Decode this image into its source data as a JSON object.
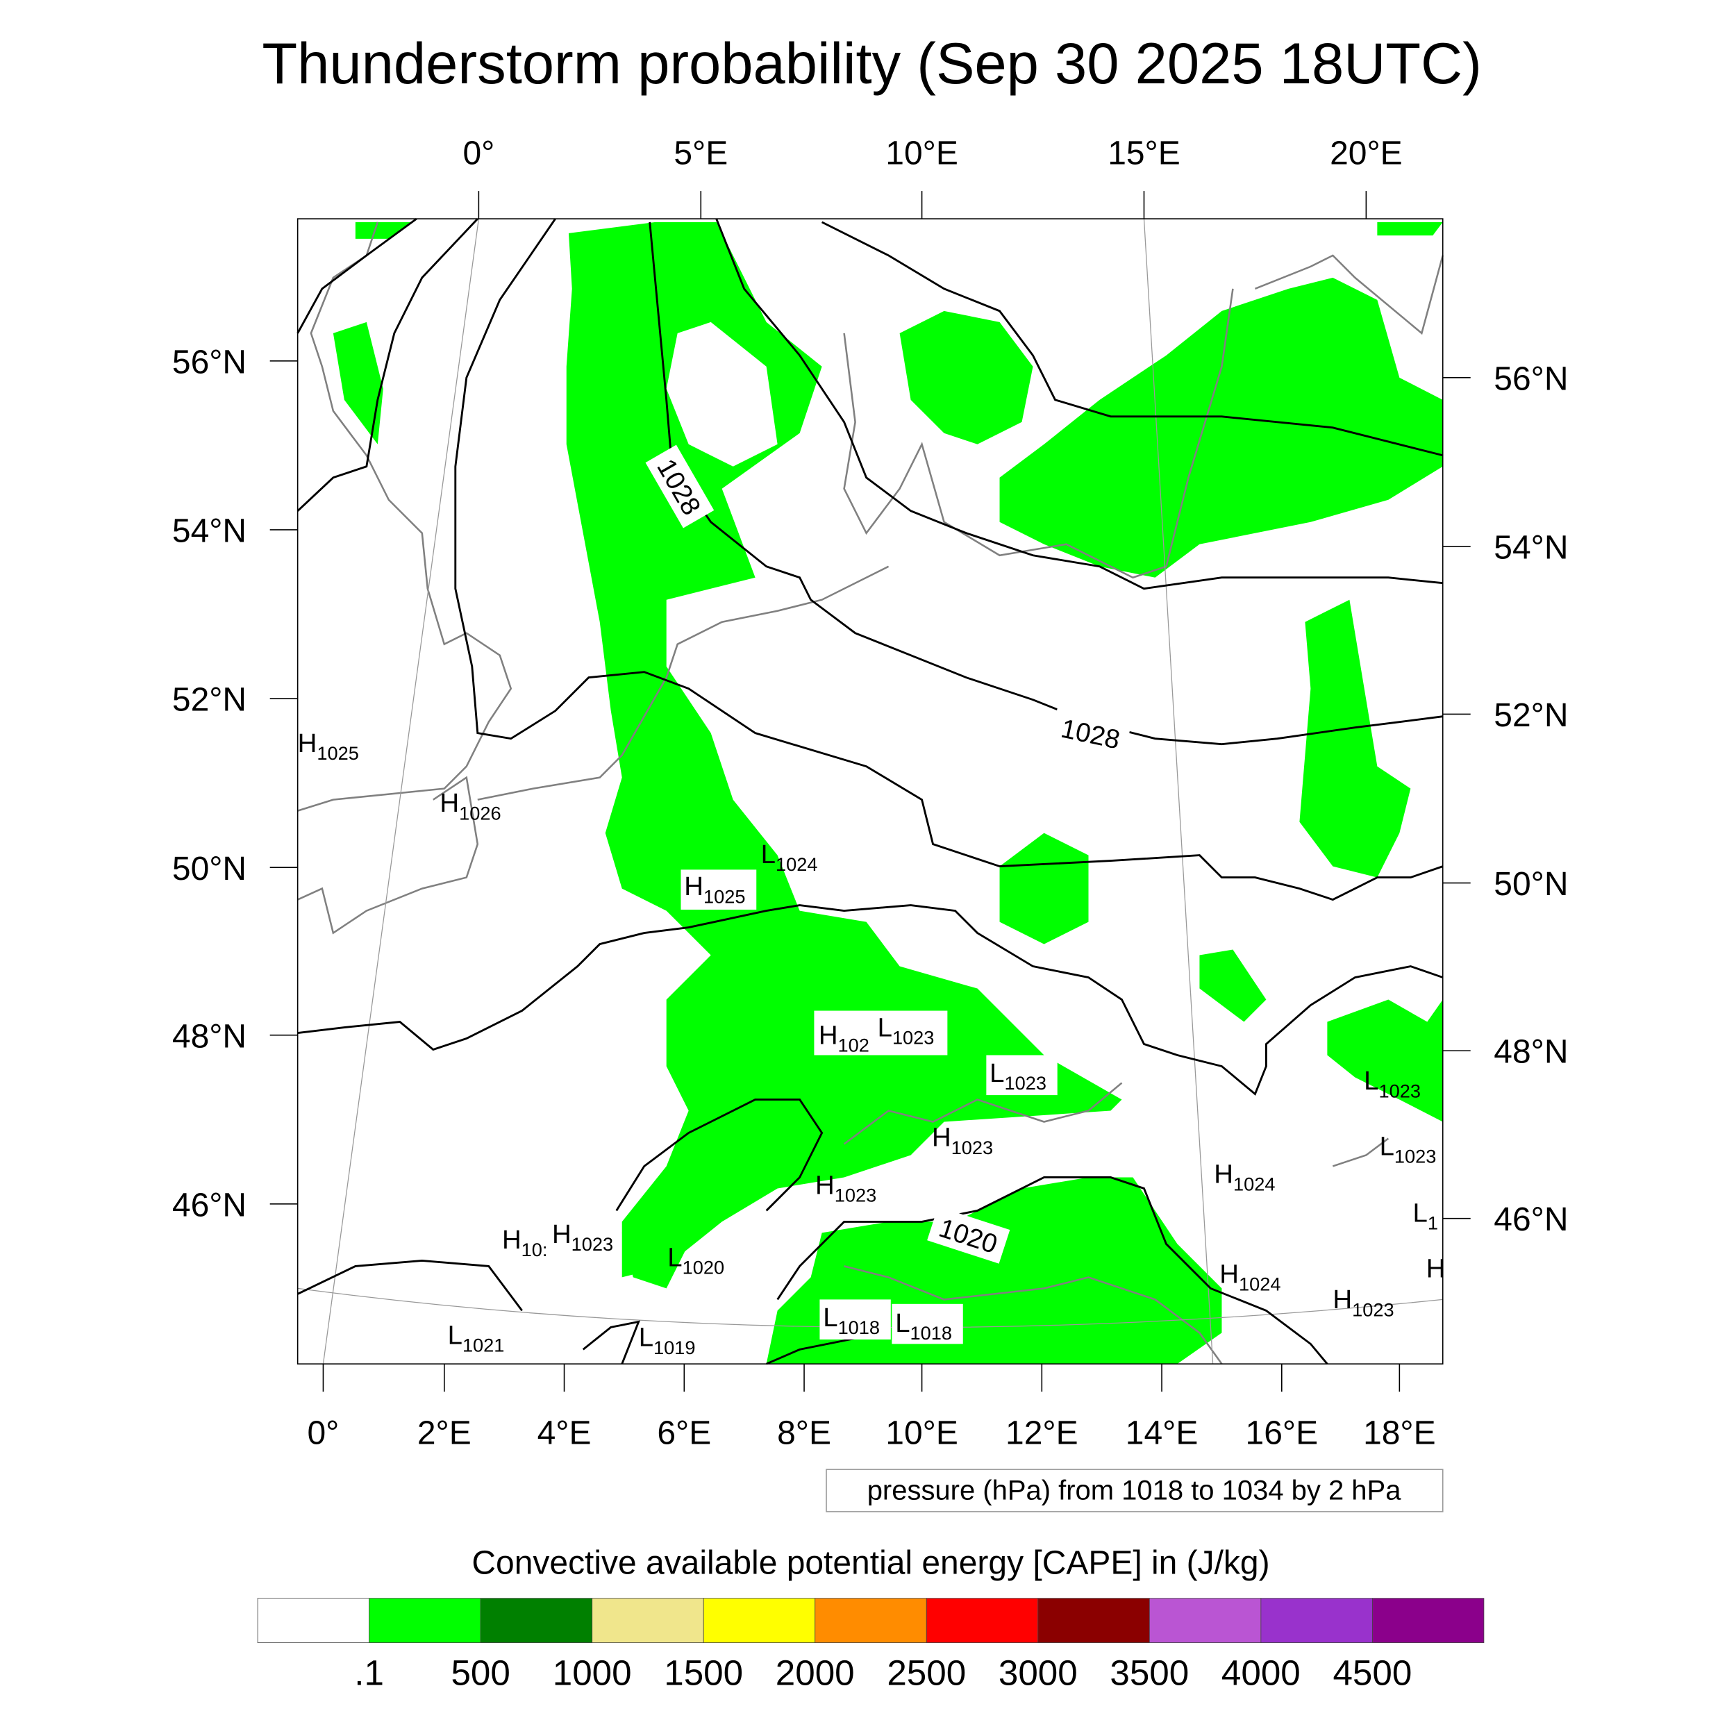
{
  "title": "Thunderstorm probability (Sep 30 2025 18UTC)",
  "map": {
    "top_lon_labels": [
      "0°",
      "5°E",
      "10°E",
      "15°E",
      "20°E"
    ],
    "bottom_lon_labels": [
      "0°",
      "2°E",
      "4°E",
      "6°E",
      "8°E",
      "10°E",
      "12°E",
      "14°E",
      "16°E",
      "18°E"
    ],
    "left_lat_labels": [
      "56°N",
      "54°N",
      "52°N",
      "50°N",
      "48°N",
      "46°N"
    ],
    "right_lat_labels": [
      "56°N",
      "54°N",
      "52°N",
      "50°N",
      "48°N",
      "46°N"
    ],
    "contour_labels": [
      "1028",
      "1028",
      "1020"
    ],
    "pressure_centers": [
      {
        "type": "H",
        "value": "1025"
      },
      {
        "type": "H",
        "value": "1026"
      },
      {
        "type": "L",
        "value": "1024"
      },
      {
        "type": "H",
        "value": "1025"
      },
      {
        "type": "H",
        "value": "102"
      },
      {
        "type": "L",
        "value": "1023"
      },
      {
        "type": "L",
        "value": "1023"
      },
      {
        "type": "L",
        "value": "1023"
      },
      {
        "type": "H",
        "value": "1023"
      },
      {
        "type": "L",
        "value": "1023"
      },
      {
        "type": "H",
        "value": "1024"
      },
      {
        "type": "H",
        "value": "1023"
      },
      {
        "type": "L",
        "value": "1"
      },
      {
        "type": "H",
        "value": "10:"
      },
      {
        "type": "H",
        "value": "1023"
      },
      {
        "type": "L",
        "value": "1020"
      },
      {
        "type": "H",
        "value": "1024"
      },
      {
        "type": "H",
        "value": "1023"
      },
      {
        "type": "H",
        "value": ""
      },
      {
        "type": "L",
        "value": "1018"
      },
      {
        "type": "L",
        "value": "1018"
      },
      {
        "type": "L",
        "value": "1021"
      },
      {
        "type": "L",
        "value": "1019"
      }
    ],
    "cape_fill_color": "#00ff00"
  },
  "pressure_info": "pressure (hPa) from 1018 to 1034 by 2 hPa",
  "colorbar": {
    "title": "Convective available potential energy [CAPE] in (J/kg)",
    "colors": [
      "#ffffff",
      "#00ff00",
      "#008000",
      "#f0e68c",
      "#ffff00",
      "#ff8c00",
      "#ff0000",
      "#8b0000",
      "#ba55d3",
      "#9932cc",
      "#8b008b"
    ],
    "labels": [
      ".1",
      "500",
      "1000",
      "1500",
      "2000",
      "2500",
      "3000",
      "3500",
      "4000",
      "4500"
    ]
  }
}
